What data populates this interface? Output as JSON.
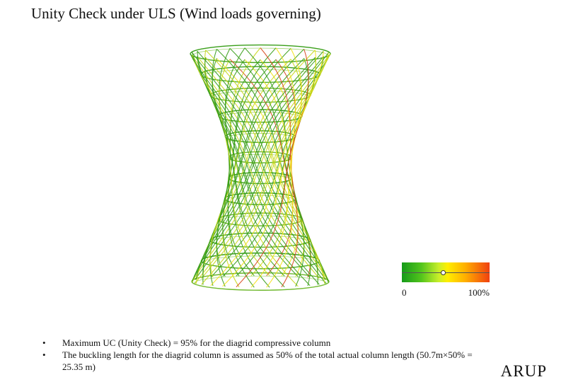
{
  "slide": {
    "title": "Unity Check under ULS (Wind loads governing)"
  },
  "diagram": {
    "subject": "hyperboloid diagrid tower wireframe",
    "ring_count": 12,
    "colors": {
      "low": "#3a9f1a",
      "mid": "#c8d81c",
      "yellow": "#f2e21a",
      "high": "#d84a20"
    }
  },
  "legend": {
    "min_label": "0",
    "max_label": "100%",
    "marker_fraction": 0.47,
    "colors": [
      "#159a1a",
      "#52c41c",
      "#ffee00",
      "#f04010"
    ]
  },
  "notes": {
    "bullet_symbol": "•",
    "items": [
      "Maximum UC (Unity Check) = 95% for the diagrid compressive column",
      "The buckling length for the diagrid column is assumed as 50% of the total actual column length (50.7m×50% = 25.35 m)"
    ]
  },
  "logo": {
    "text": "ARUP"
  }
}
